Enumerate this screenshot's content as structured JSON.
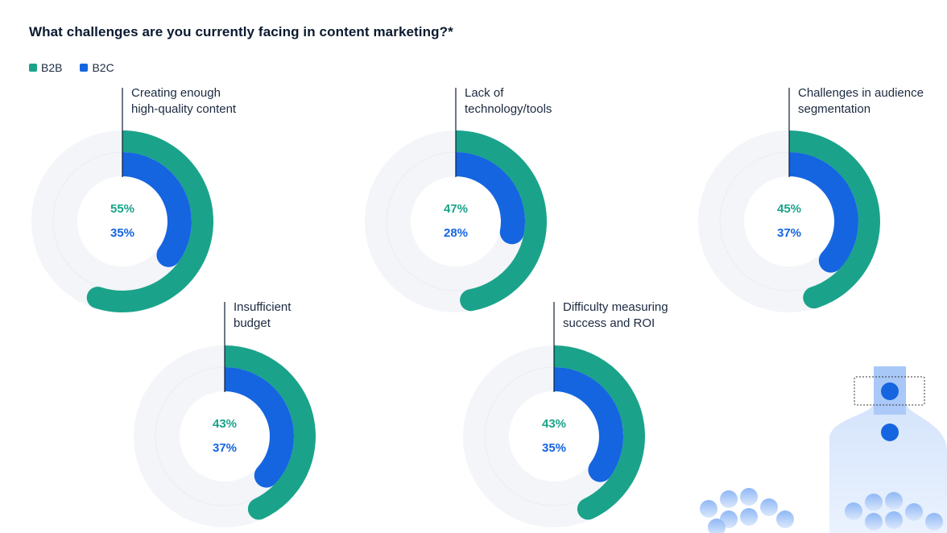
{
  "title": "What challenges are you currently facing in content marketing?*",
  "colors": {
    "b2b": "#1aa38a",
    "b2c": "#1565e0",
    "track": "#f3f5f8",
    "axis": "#0f1d33"
  },
  "legend": [
    {
      "name": "B2B",
      "color": "#1aa38a"
    },
    {
      "name": "B2C",
      "color": "#1565e0"
    }
  ],
  "chart_data": {
    "type": "radial-bar",
    "series_names": [
      "B2B",
      "B2C"
    ],
    "charts": [
      {
        "label_lines": [
          "Creating enough",
          "high-quality content"
        ],
        "b2b": 55,
        "b2c": 35,
        "b2b_label": "55%",
        "b2c_label": "35%"
      },
      {
        "label_lines": [
          "Lack of",
          "technology/tools"
        ],
        "b2b": 47,
        "b2c": 28,
        "b2b_label": "47%",
        "b2c_label": "28%"
      },
      {
        "label_lines": [
          "Challenges in audience",
          "segmentation"
        ],
        "b2b": 45,
        "b2c": 37,
        "b2b_label": "45%",
        "b2c_label": "37%"
      },
      {
        "label_lines": [
          "Insufficient",
          "budget"
        ],
        "b2b": 43,
        "b2c": 37,
        "b2b_label": "43%",
        "b2c_label": "37%"
      },
      {
        "label_lines": [
          "Difficulty measuring",
          "success and ROI"
        ],
        "b2b": 43,
        "b2c": 35,
        "b2b_label": "43%",
        "b2c_label": "35%"
      }
    ]
  }
}
